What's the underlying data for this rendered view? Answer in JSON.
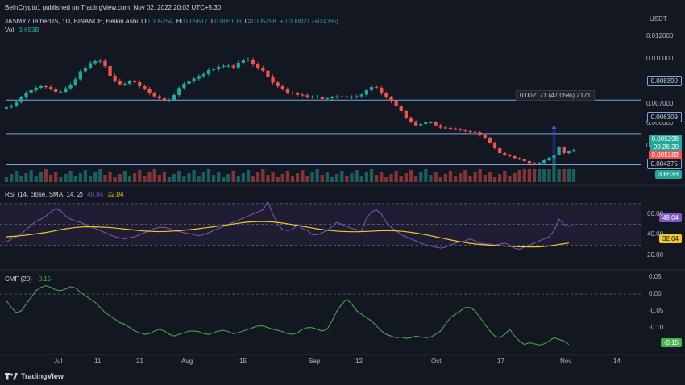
{
  "header": {
    "publisher": "BeInCrypto1 published on TradingView.com, Nov 02, 2022 20:03 UTC+5:30",
    "currency": "USDT",
    "symbol": "JASMY / TetherUS, 1D, BINANCE, Heikin Ashi",
    "ohlc": [
      {
        "label": "O",
        "value": "0.005254"
      },
      {
        "label": "H",
        "value": "0.005617"
      },
      {
        "label": "L",
        "value": "0.005106"
      },
      {
        "label": "C",
        "value": "0.005298"
      }
    ],
    "change": "+0.000021 (+0.41%)",
    "vol_label": "Vol",
    "vol_value": "3.653B"
  },
  "price_pane": {
    "ticks": [
      "0.012000",
      "0.010000",
      "0.007000",
      "0.006000",
      "0.005000"
    ],
    "ticks_lower": [
      "0"
    ],
    "hlines": [
      {
        "value": "0.008390",
        "label": "0.008390"
      },
      {
        "value": "0.006309",
        "label": "0.006309"
      },
      {
        "value": "0.004375",
        "label": "0.004375"
      }
    ],
    "current_price": "0.005298",
    "countdown": "09:26:20",
    "low_label": "0.005183",
    "volume_label": "3.653B",
    "measure_tooltip": "0.002171 (47.05%) 2171",
    "colors": {
      "up": "#26a69a",
      "down": "#ef5350",
      "hline": "#7ba5e8"
    }
  },
  "rsi_pane": {
    "title": "RSI (14, close, SMA, 14, 2)",
    "rsi_value": "49.04",
    "sma_value": "32.04",
    "ticks": [
      "60.00",
      "40.00",
      "20.00"
    ],
    "colors": {
      "rsi": "#7e57c2",
      "sma": "#f0c929"
    }
  },
  "cmf_pane": {
    "title": "CMF (20)",
    "value": "-0.15",
    "ticks": [
      "0.05",
      "0.00",
      "-0.05",
      "-0.10"
    ],
    "color": "#4caf50"
  },
  "x_axis": {
    "labels": [
      "Jul",
      "11",
      "21",
      "Aug",
      "15",
      "Sep",
      "12",
      "Oct",
      "17",
      "Nov",
      "14"
    ]
  },
  "footer": {
    "brand": "TradingView"
  },
  "chart_data": [
    {
      "type": "candlestick",
      "title": "JASMY / TetherUS, 1D, BINANCE, Heikin Ashi",
      "x_start": "2022-06-24",
      "x_step_days": 1,
      "close": [
        0.00795,
        0.00805,
        0.00826,
        0.00855,
        0.00885,
        0.009,
        0.00915,
        0.00925,
        0.0092,
        0.00908,
        0.0089,
        0.0089,
        0.00912,
        0.00935,
        0.00968,
        0.01018,
        0.0104,
        0.01068,
        0.0108,
        0.01082,
        0.0105,
        0.0099,
        0.0096,
        0.00938,
        0.0094,
        0.00955,
        0.0095,
        0.00925,
        0.0091,
        0.0088,
        0.00862,
        0.0085,
        0.00835,
        0.0084,
        0.0087,
        0.00913,
        0.0094,
        0.00958,
        0.00972,
        0.00988,
        0.01,
        0.01025,
        0.0103,
        0.01045,
        0.0105,
        0.01052,
        0.01042,
        0.0107,
        0.01088,
        0.0109,
        0.0106,
        0.01038,
        0.01022,
        0.00985,
        0.00948,
        0.00925,
        0.00908,
        0.00885,
        0.0088,
        0.00872,
        0.00868,
        0.00858,
        0.00858,
        0.0086,
        0.00845,
        0.0085,
        0.00855,
        0.00862,
        0.00862,
        0.00856,
        0.00858,
        0.00862,
        0.00872,
        0.009,
        0.0092,
        0.00915,
        0.0088,
        0.00855,
        0.0083,
        0.00805,
        0.0077,
        0.0073,
        0.00705,
        0.00682,
        0.0069,
        0.007,
        0.007,
        0.00682,
        0.00668,
        0.00665,
        0.00662,
        0.00658,
        0.0065,
        0.00645,
        0.00642,
        0.00638,
        0.0062,
        0.00605,
        0.00575,
        0.0054,
        0.0051,
        0.00498,
        0.0049,
        0.00478,
        0.0047,
        0.0046,
        0.00448,
        0.00438,
        0.0045,
        0.00465,
        0.0048,
        0.005,
        0.00545,
        0.0051,
        0.0052,
        0.0053
      ],
      "price_levels": [
        0.00839,
        0.006309,
        0.004375
      ],
      "ylim": [
        0.0035,
        0.0131
      ]
    },
    {
      "type": "line",
      "title": "RSI (14, close, SMA, 14, 2)",
      "series": [
        {
          "name": "RSI",
          "values": [
            33,
            36,
            38,
            41,
            45,
            49,
            53,
            55,
            58,
            62,
            65,
            63,
            58,
            55,
            53,
            52,
            50,
            48,
            46,
            44,
            42,
            40,
            38,
            37,
            36,
            37,
            38,
            40,
            42,
            44,
            46,
            47,
            47,
            46,
            44,
            43,
            42,
            41,
            40,
            39,
            40,
            42,
            44,
            46,
            48,
            50,
            52,
            54,
            56,
            58,
            60,
            62,
            64,
            72,
            60,
            50,
            45,
            44,
            45,
            50,
            46,
            44,
            40,
            40,
            42,
            44,
            48,
            52,
            50,
            48,
            46,
            45,
            44,
            56,
            62,
            64,
            60,
            52,
            47,
            44,
            40,
            38,
            36,
            34,
            32,
            30,
            29,
            28,
            27,
            28,
            30,
            32,
            33,
            34,
            36,
            34,
            32,
            31,
            31,
            30,
            31,
            32,
            30,
            27,
            26,
            28,
            30,
            32,
            34,
            36,
            38,
            44,
            55,
            50,
            48,
            49.04
          ]
        },
        {
          "name": "SMA",
          "values": [
            38,
            38.3,
            38.7,
            39.1,
            39.6,
            40.2,
            40.8,
            41.5,
            42.2,
            43.0,
            44.0,
            44.9,
            45.7,
            46.4,
            47.0,
            47.4,
            47.6,
            47.7,
            47.6,
            47.4,
            47.2,
            46.9,
            46.5,
            46.0,
            45.5,
            45.0,
            44.5,
            44.0,
            43.6,
            43.3,
            43.1,
            43.0,
            43.1,
            43.3,
            43.6,
            43.9,
            44.3,
            44.8,
            45.3,
            45.9,
            46.5,
            47.1,
            47.7,
            48.3,
            49.0,
            49.7,
            50.4,
            51.1,
            51.7,
            52.2,
            52.5,
            52.7,
            52.7,
            52.6,
            52.3,
            51.8,
            51.2,
            50.5,
            49.7,
            48.9,
            48.1,
            47.3,
            46.5,
            45.7,
            45.0,
            44.4,
            43.9,
            43.5,
            43.2,
            43.0,
            42.9,
            42.9,
            43.0,
            43.2,
            43.4,
            43.7,
            43.9,
            44.0,
            43.9,
            43.7,
            43.4,
            42.9,
            42.3,
            41.6,
            40.8,
            39.9,
            39.0,
            38.0,
            37.0,
            36.0,
            35.0,
            34.1,
            33.2,
            32.4,
            31.7,
            31.1,
            30.6,
            30.2,
            29.9,
            29.6,
            29.3,
            29.0,
            28.8,
            28.6,
            28.4,
            28.3,
            28.2,
            28.2,
            28.3,
            28.6,
            29.1,
            29.8,
            30.6,
            31.3,
            32.04
          ]
        }
      ],
      "ylim": [
        10,
        80
      ]
    },
    {
      "type": "line",
      "title": "CMF (20)",
      "series": [
        {
          "name": "CMF",
          "values": [
            -0.02,
            -0.04,
            -0.055,
            -0.05,
            -0.03,
            -0.01,
            0.01,
            0.02,
            0.025,
            0.02,
            0.012,
            0.01,
            0.015,
            0.022,
            0.018,
            0.005,
            -0.005,
            -0.015,
            -0.025,
            -0.04,
            -0.055,
            -0.065,
            -0.075,
            -0.085,
            -0.09,
            -0.1,
            -0.11,
            -0.115,
            -0.12,
            -0.118,
            -0.11,
            -0.105,
            -0.11,
            -0.12,
            -0.125,
            -0.12,
            -0.115,
            -0.11,
            -0.11,
            -0.112,
            -0.118,
            -0.12,
            -0.115,
            -0.11,
            -0.108,
            -0.112,
            -0.118,
            -0.115,
            -0.11,
            -0.105,
            -0.1,
            -0.095,
            -0.095,
            -0.1,
            -0.105,
            -0.108,
            -0.112,
            -0.118,
            -0.12,
            -0.115,
            -0.105,
            -0.1,
            -0.1,
            -0.105,
            -0.11,
            -0.105,
            -0.08,
            -0.05,
            -0.03,
            -0.015,
            -0.03,
            -0.05,
            -0.06,
            -0.07,
            -0.08,
            -0.095,
            -0.11,
            -0.12,
            -0.125,
            -0.13,
            -0.128,
            -0.132,
            -0.13,
            -0.125,
            -0.128,
            -0.13,
            -0.128,
            -0.12,
            -0.11,
            -0.09,
            -0.07,
            -0.06,
            -0.05,
            -0.04,
            -0.04,
            -0.05,
            -0.07,
            -0.09,
            -0.11,
            -0.125,
            -0.13,
            -0.12,
            -0.105,
            -0.125,
            -0.14,
            -0.15,
            -0.145,
            -0.148,
            -0.152,
            -0.148,
            -0.14,
            -0.13,
            -0.135,
            -0.14,
            -0.15
          ]
        }
      ],
      "ylim": [
        -0.17,
        0.06
      ]
    }
  ]
}
